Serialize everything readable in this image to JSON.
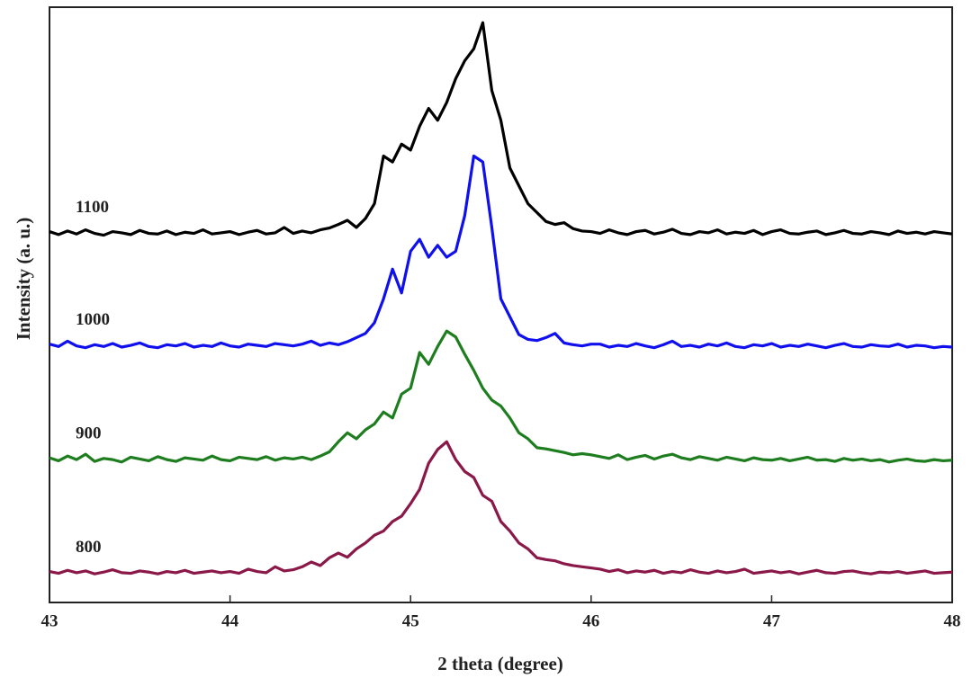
{
  "chart_data": {
    "type": "line",
    "xlabel": "2 theta (degree)",
    "ylabel": "Intensity (a. u.)",
    "xlim": [
      43,
      48
    ],
    "xticks": [
      43,
      44,
      45,
      46,
      47,
      48
    ],
    "ylim": [
      0,
      100
    ],
    "x": [
      43,
      43.05,
      43.1,
      43.15,
      43.2,
      43.25,
      43.3,
      43.35,
      43.4,
      43.45,
      43.5,
      43.55,
      43.6,
      43.65,
      43.7,
      43.75,
      43.8,
      43.85,
      43.9,
      43.95,
      44,
      44.05,
      44.1,
      44.15,
      44.2,
      44.25,
      44.3,
      44.35,
      44.4,
      44.45,
      44.5,
      44.55,
      44.6,
      44.65,
      44.7,
      44.75,
      44.8,
      44.85,
      44.9,
      44.95,
      45,
      45.05,
      45.1,
      45.15,
      45.2,
      45.25,
      45.3,
      45.35,
      45.4,
      45.45,
      45.5,
      45.55,
      45.6,
      45.65,
      45.7,
      45.75,
      45.8,
      45.85,
      45.9,
      45.95,
      46,
      46.05,
      46.1,
      46.15,
      46.2,
      46.25,
      46.3,
      46.35,
      46.4,
      46.45,
      46.5,
      46.55,
      46.6,
      46.65,
      46.7,
      46.75,
      46.8,
      46.85,
      46.9,
      46.95,
      47,
      47.05,
      47.1,
      47.15,
      47.2,
      47.25,
      47.3,
      47.35,
      47.4,
      47.45,
      47.5,
      47.55,
      47.6,
      47.65,
      47.7,
      47.75,
      47.8,
      47.85,
      47.9,
      47.95,
      48
    ],
    "series": [
      {
        "name": "1100",
        "color": "#000000",
        "values": [
          62.3,
          61.8,
          62.4,
          61.9,
          62.6,
          62.0,
          61.7,
          62.3,
          62.1,
          61.8,
          62.5,
          62.0,
          61.9,
          62.4,
          61.8,
          62.2,
          62.0,
          62.6,
          61.9,
          62.1,
          62.3,
          61.8,
          62.2,
          62.5,
          61.9,
          62.1,
          63.0,
          62.0,
          62.4,
          62.1,
          62.6,
          62.9,
          63.5,
          64.2,
          63.0,
          64.5,
          67,
          75,
          74,
          77,
          76,
          80,
          83,
          81,
          84,
          88,
          91,
          93,
          97.4,
          86,
          81,
          73,
          70,
          67,
          65.5,
          64,
          63.5,
          63.8,
          62.8,
          62.4,
          62.3,
          62.0,
          62.6,
          62.1,
          61.8,
          62.3,
          62.5,
          61.9,
          62.2,
          62.7,
          62.0,
          61.8,
          62.3,
          62.1,
          62.6,
          61.9,
          62.2,
          62.0,
          62.5,
          61.8,
          62.3,
          62.6,
          62.0,
          61.9,
          62.2,
          62.4,
          61.8,
          62.1,
          62.5,
          62.0,
          61.9,
          62.3,
          62.1,
          61.8,
          62.4,
          62.0,
          62.2,
          61.9,
          62.3,
          62.1,
          61.9
        ]
      },
      {
        "name": "1000",
        "color": "#1010ee",
        "values": [
          43.4,
          43.0,
          43.9,
          43.1,
          42.8,
          43.3,
          43.0,
          43.5,
          42.9,
          43.2,
          43.6,
          43.0,
          42.8,
          43.3,
          43.1,
          43.5,
          42.9,
          43.2,
          43.0,
          43.6,
          43.1,
          42.9,
          43.4,
          43.2,
          43.0,
          43.5,
          43.3,
          43.1,
          43.4,
          43.9,
          43.2,
          43.6,
          43.3,
          43.8,
          44.5,
          45.2,
          47,
          51,
          56,
          52,
          59,
          61,
          58,
          60,
          58,
          59,
          65,
          75,
          74,
          63,
          51,
          48,
          45,
          44.2,
          44.0,
          44.5,
          45.2,
          43.6,
          43.3,
          43.1,
          43.4,
          43.4,
          42.9,
          43.2,
          43.0,
          43.5,
          43.1,
          42.8,
          43.3,
          43.9,
          43.0,
          43.2,
          42.9,
          43.4,
          43.1,
          43.6,
          43.0,
          42.8,
          43.3,
          43.1,
          43.5,
          42.9,
          43.2,
          43.0,
          43.4,
          43.1,
          42.8,
          43.2,
          43.5,
          43.0,
          42.9,
          43.3,
          43.1,
          43.0,
          43.4,
          42.9,
          43.2,
          43.1,
          42.8,
          43.0,
          42.9
        ]
      },
      {
        "name": "900",
        "color": "#1e7d1e",
        "values": [
          24.3,
          23.8,
          24.6,
          24.0,
          24.9,
          23.7,
          24.2,
          24.0,
          23.6,
          24.4,
          24.1,
          23.8,
          24.5,
          24.0,
          23.7,
          24.3,
          24.1,
          23.9,
          24.6,
          24.0,
          23.8,
          24.4,
          24.2,
          24.0,
          24.5,
          23.9,
          24.3,
          24.1,
          24.4,
          24.0,
          24.6,
          25.3,
          27,
          28.5,
          27.5,
          29,
          30,
          32,
          31,
          35,
          36,
          42,
          40,
          43,
          45.6,
          44.6,
          41.7,
          39,
          36,
          34,
          33,
          31,
          28.5,
          27.5,
          26,
          25.8,
          25.5,
          25.2,
          24.8,
          25.0,
          24.8,
          24.5,
          24.2,
          24.8,
          24.0,
          24.4,
          24.7,
          24.1,
          24.6,
          24.9,
          24.3,
          24.0,
          24.5,
          24.2,
          23.9,
          24.4,
          24.1,
          23.8,
          24.3,
          24.0,
          23.9,
          24.2,
          23.8,
          24.1,
          24.4,
          23.9,
          24.0,
          23.7,
          24.2,
          23.9,
          24.1,
          23.8,
          24.0,
          23.6,
          23.9,
          24.1,
          23.8,
          23.7,
          24.0,
          23.8,
          23.9
        ]
      },
      {
        "name": "800",
        "color": "#8a1848",
        "values": [
          5.2,
          4.9,
          5.4,
          5.0,
          5.3,
          4.8,
          5.1,
          5.5,
          5.0,
          4.9,
          5.3,
          5.1,
          4.8,
          5.2,
          5.0,
          5.4,
          4.9,
          5.1,
          5.3,
          5.0,
          5.2,
          4.9,
          5.6,
          5.2,
          5.0,
          6.0,
          5.3,
          5.5,
          6.0,
          6.8,
          6.2,
          7.5,
          8.3,
          7.6,
          9,
          10,
          11.3,
          12,
          13.6,
          14.5,
          16.6,
          19,
          23.4,
          25.7,
          27,
          24,
          22,
          21,
          18,
          17,
          13.6,
          12,
          10,
          9,
          7.5,
          7.2,
          7.0,
          6.5,
          6.2,
          6.0,
          5.8,
          5.6,
          5.2,
          5.5,
          5.0,
          5.3,
          5.1,
          5.4,
          4.9,
          5.2,
          5.0,
          5.5,
          5.1,
          4.9,
          5.3,
          5.0,
          5.2,
          5.6,
          4.9,
          5.1,
          5.3,
          5.0,
          5.2,
          4.8,
          5.1,
          5.4,
          5.0,
          4.9,
          5.2,
          5.3,
          5.0,
          4.8,
          5.1,
          5.0,
          5.2,
          4.9,
          5.1,
          5.3,
          4.9,
          5.0,
          5.1
        ]
      }
    ]
  }
}
